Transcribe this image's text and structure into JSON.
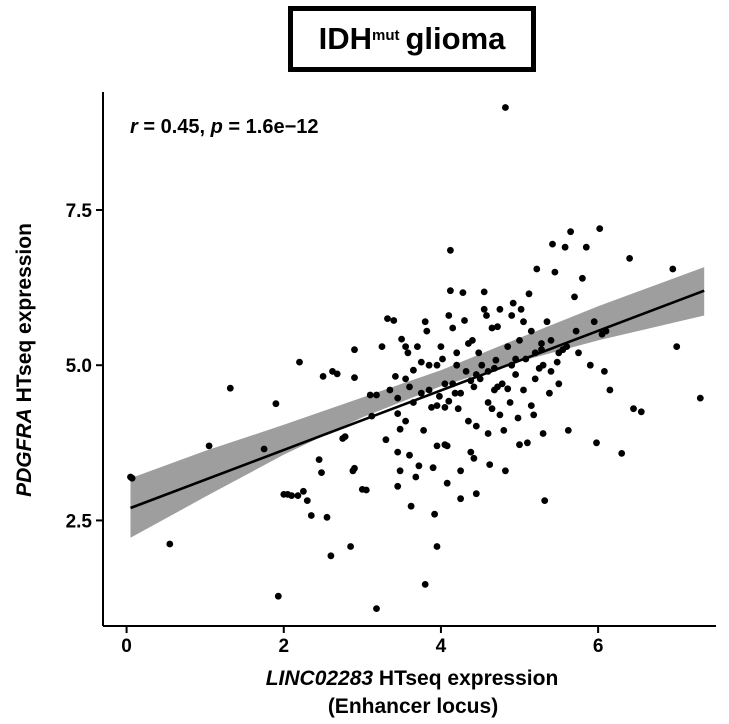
{
  "title": {
    "main": "IDH",
    "superscript": "mut",
    "suffix": "glioma"
  },
  "annotation": {
    "r_label": "r",
    "r_text": " = 0.45, ",
    "p_label": "p",
    "p_text": " = 1.6e−12"
  },
  "chart_data": {
    "type": "scatter",
    "title": "IDHmut glioma",
    "xlabel_italic": "LINC02283",
    "xlabel_rest": " HTseq expression",
    "xlabel_line2": "(Enhancer locus)",
    "ylabel_italic": "PDGFRA",
    "ylabel_rest": " HTseq expression",
    "xlim": [
      -0.3,
      7.5
    ],
    "ylim": [
      0.8,
      9.4
    ],
    "x_ticks": [
      0,
      2,
      4,
      6
    ],
    "x_tick_labels": [
      "0",
      "2",
      "4",
      "6"
    ],
    "y_ticks": [
      2.5,
      5.0,
      7.5
    ],
    "y_tick_labels": [
      "2.5",
      "5.0",
      "7.5"
    ],
    "correlation": {
      "r": 0.45,
      "p": "1.6e-12"
    },
    "regression": {
      "x0": 0.05,
      "y0": 2.7,
      "x1": 7.35,
      "y1": 6.2
    },
    "confidence_band": {
      "x": [
        0.05,
        1.0,
        2.0,
        3.0,
        4.0,
        5.0,
        6.0,
        7.35
      ],
      "lower": [
        2.22,
        2.88,
        3.56,
        4.16,
        4.66,
        5.06,
        5.4,
        5.8
      ],
      "upper": [
        3.18,
        3.62,
        4.04,
        4.48,
        4.92,
        5.44,
        5.95,
        6.58
      ]
    },
    "grid": false,
    "legend": "none",
    "color": "#000000",
    "band_color": "#999999",
    "points": [
      [
        0.05,
        3.2
      ],
      [
        0.07,
        3.18
      ],
      [
        0.55,
        2.12
      ],
      [
        1.05,
        3.7
      ],
      [
        1.32,
        4.63
      ],
      [
        1.9,
        4.38
      ],
      [
        1.93,
        1.28
      ],
      [
        1.75,
        3.65
      ],
      [
        2.2,
        5.05
      ],
      [
        2.05,
        2.92
      ],
      [
        2.1,
        2.9
      ],
      [
        2.25,
        2.97
      ],
      [
        2.35,
        2.58
      ],
      [
        2.3,
        2.82
      ],
      [
        2.45,
        3.48
      ],
      [
        2.48,
        3.27
      ],
      [
        2.5,
        4.82
      ],
      [
        2.55,
        2.55
      ],
      [
        2.6,
        1.93
      ],
      [
        2.62,
        4.9
      ],
      [
        2.68,
        4.86
      ],
      [
        2.75,
        3.82
      ],
      [
        2.78,
        3.85
      ],
      [
        2.85,
        2.08
      ],
      [
        2.9,
        5.25
      ],
      [
        2.9,
        4.8
      ],
      [
        2.88,
        3.3
      ],
      [
        2.9,
        3.34
      ],
      [
        3.0,
        3.0
      ],
      [
        3.05,
        2.99
      ],
      [
        3.1,
        4.52
      ],
      [
        3.12,
        4.18
      ],
      [
        3.18,
        4.52
      ],
      [
        3.18,
        1.08
      ],
      [
        3.25,
        5.3
      ],
      [
        3.32,
        5.75
      ],
      [
        3.35,
        4.6
      ],
      [
        3.4,
        5.72
      ],
      [
        3.42,
        4.82
      ],
      [
        3.45,
        4.47
      ],
      [
        3.45,
        4.22
      ],
      [
        3.48,
        3.97
      ],
      [
        3.45,
        3.6
      ],
      [
        3.48,
        3.3
      ],
      [
        3.45,
        3.05
      ],
      [
        3.5,
        5.42
      ],
      [
        3.55,
        4.78
      ],
      [
        3.58,
        5.2
      ],
      [
        3.6,
        3.55
      ],
      [
        3.62,
        2.73
      ],
      [
        3.65,
        4.4
      ],
      [
        3.65,
        4.92
      ],
      [
        3.7,
        5.3
      ],
      [
        3.72,
        3.38
      ],
      [
        3.75,
        4.55
      ],
      [
        3.78,
        3.95
      ],
      [
        3.8,
        1.47
      ],
      [
        3.8,
        5.7
      ],
      [
        3.82,
        5.55
      ],
      [
        3.85,
        5.0
      ],
      [
        3.88,
        4.32
      ],
      [
        3.9,
        3.35
      ],
      [
        3.92,
        2.6
      ],
      [
        3.95,
        2.08
      ],
      [
        3.95,
        3.7
      ],
      [
        3.98,
        4.5
      ],
      [
        4.0,
        5.3
      ],
      [
        4.02,
        5.1
      ],
      [
        4.05,
        4.7
      ],
      [
        4.05,
        4.32
      ],
      [
        4.08,
        3.7
      ],
      [
        4.08,
        3.1
      ],
      [
        4.1,
        5.8
      ],
      [
        4.12,
        6.2
      ],
      [
        4.12,
        6.85
      ],
      [
        4.15,
        5.6
      ],
      [
        4.18,
        4.55
      ],
      [
        4.2,
        5.2
      ],
      [
        4.2,
        5.0
      ],
      [
        4.22,
        4.3
      ],
      [
        4.25,
        3.3
      ],
      [
        4.25,
        2.85
      ],
      [
        4.28,
        6.17
      ],
      [
        4.3,
        5.72
      ],
      [
        4.32,
        4.9
      ],
      [
        4.35,
        4.1
      ],
      [
        4.38,
        3.6
      ],
      [
        4.4,
        5.4
      ],
      [
        4.42,
        4.65
      ],
      [
        4.45,
        2.93
      ],
      [
        4.45,
        4.02
      ],
      [
        4.48,
        5.2
      ],
      [
        4.5,
        4.78
      ],
      [
        4.52,
        5.0
      ],
      [
        4.55,
        6.18
      ],
      [
        4.58,
        5.8
      ],
      [
        4.6,
        4.9
      ],
      [
        4.6,
        3.9
      ],
      [
        4.62,
        3.4
      ],
      [
        4.65,
        5.6
      ],
      [
        4.65,
        4.3
      ],
      [
        4.68,
        4.6
      ],
      [
        4.7,
        5.08
      ],
      [
        4.72,
        5.62
      ],
      [
        4.75,
        5.9
      ],
      [
        4.78,
        4.7
      ],
      [
        4.8,
        3.95
      ],
      [
        4.82,
        3.3
      ],
      [
        4.82,
        9.15
      ],
      [
        4.85,
        5.3
      ],
      [
        4.88,
        4.4
      ],
      [
        4.9,
        5.0
      ],
      [
        4.92,
        6.0
      ],
      [
        4.95,
        4.85
      ],
      [
        4.98,
        4.15
      ],
      [
        5.0,
        5.4
      ],
      [
        5.0,
        3.72
      ],
      [
        5.02,
        5.9
      ],
      [
        5.05,
        4.6
      ],
      [
        5.08,
        5.1
      ],
      [
        5.1,
        3.75
      ],
      [
        5.12,
        6.15
      ],
      [
        5.15,
        5.55
      ],
      [
        5.18,
        4.2
      ],
      [
        5.2,
        4.78
      ],
      [
        5.22,
        6.55
      ],
      [
        5.25,
        4.95
      ],
      [
        5.28,
        5.25
      ],
      [
        5.3,
        3.9
      ],
      [
        5.32,
        2.82
      ],
      [
        5.35,
        5.7
      ],
      [
        5.38,
        4.55
      ],
      [
        5.4,
        5.4
      ],
      [
        5.42,
        6.95
      ],
      [
        5.45,
        6.5
      ],
      [
        5.48,
        5.05
      ],
      [
        5.5,
        4.7
      ],
      [
        5.55,
        5.25
      ],
      [
        5.58,
        6.9
      ],
      [
        5.6,
        5.3
      ],
      [
        5.62,
        3.95
      ],
      [
        5.65,
        7.15
      ],
      [
        5.7,
        6.1
      ],
      [
        5.72,
        5.55
      ],
      [
        5.75,
        5.2
      ],
      [
        5.8,
        6.4
      ],
      [
        5.85,
        6.9
      ],
      [
        5.9,
        5.0
      ],
      [
        5.95,
        5.7
      ],
      [
        5.98,
        3.75
      ],
      [
        6.02,
        7.2
      ],
      [
        6.05,
        5.5
      ],
      [
        6.08,
        4.9
      ],
      [
        6.1,
        5.55
      ],
      [
        6.15,
        4.6
      ],
      [
        6.3,
        3.58
      ],
      [
        6.4,
        6.72
      ],
      [
        6.45,
        4.3
      ],
      [
        6.55,
        4.25
      ],
      [
        6.95,
        6.55
      ],
      [
        7.0,
        5.3
      ],
      [
        7.3,
        4.47
      ],
      [
        2.0,
        2.92
      ],
      [
        2.18,
        2.9
      ],
      [
        3.3,
        3.8
      ],
      [
        3.55,
        4.1
      ],
      [
        3.68,
        3.2
      ],
      [
        4.05,
        3.72
      ],
      [
        4.15,
        4.7
      ],
      [
        4.35,
        5.35
      ],
      [
        4.42,
        3.5
      ],
      [
        4.55,
        5.9
      ],
      [
        4.75,
        4.2
      ],
      [
        4.9,
        5.8
      ],
      [
        5.05,
        5.7
      ],
      [
        5.15,
        4.35
      ],
      [
        5.3,
        5.0
      ],
      [
        5.4,
        4.9
      ],
      [
        5.5,
        5.2
      ],
      [
        3.85,
        4.6
      ],
      [
        3.95,
        5.0
      ],
      [
        4.25,
        4.55
      ],
      [
        4.68,
        4.95
      ],
      [
        5.2,
        5.2
      ],
      [
        3.6,
        4.65
      ],
      [
        4.38,
        4.75
      ],
      [
        4.85,
        4.62
      ],
      [
        5.28,
        5.35
      ],
      [
        3.75,
        5.05
      ],
      [
        4.45,
        4.85
      ],
      [
        4.95,
        5.1
      ],
      [
        3.55,
        5.3
      ],
      [
        4.1,
        4.42
      ],
      [
        4.6,
        4.4
      ],
      [
        4.72,
        4.65
      ],
      [
        3.95,
        4.35
      ]
    ]
  }
}
